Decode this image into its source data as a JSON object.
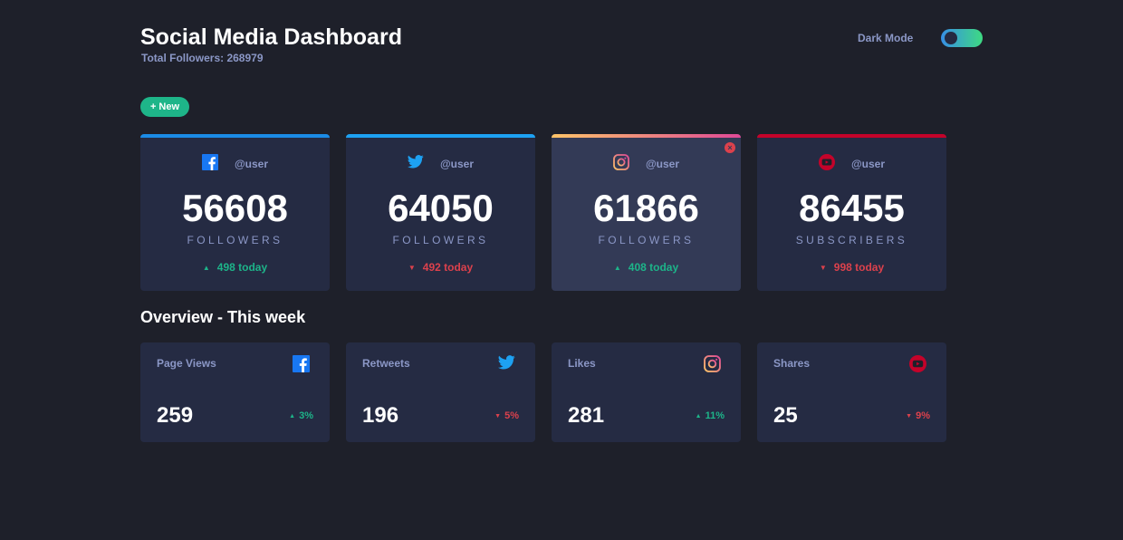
{
  "header": {
    "title": "Social Media Dashboard",
    "total_followers": "Total Followers: 268979",
    "dark_mode_label": "Dark Mode",
    "dark_mode_on": true
  },
  "actions": {
    "new_button": "+ New"
  },
  "colors": {
    "background": "#1e202a",
    "card": "#252b43",
    "card_hover": "#333a56",
    "up": "#1db489",
    "down": "#dc414c",
    "facebook": "#1877f2",
    "twitter": "#1da1f2",
    "instagram_gradient": [
      "#fdc468",
      "#df4996"
    ],
    "youtube": "#c4032a"
  },
  "cards": [
    {
      "platform": "facebook",
      "icon": "facebook-icon",
      "handle": "@user",
      "count": "56608",
      "unit": "FOLLOWERS",
      "today": "498 today",
      "trend": "up"
    },
    {
      "platform": "twitter",
      "icon": "twitter-icon",
      "handle": "@user",
      "count": "64050",
      "unit": "FOLLOWERS",
      "today": "492 today",
      "trend": "down"
    },
    {
      "platform": "instagram",
      "icon": "instagram-icon",
      "handle": "@user",
      "count": "61866",
      "unit": "FOLLOWERS",
      "today": "408 today",
      "trend": "up"
    },
    {
      "platform": "youtube",
      "icon": "youtube-icon",
      "handle": "@user",
      "count": "86455",
      "unit": "SUBSCRIBERS",
      "today": "998 today",
      "trend": "down"
    }
  ],
  "overview": {
    "title": "Overview - This week",
    "items": [
      {
        "metric": "Page Views",
        "icon": "facebook-icon",
        "value": "259",
        "change": "3%",
        "trend": "up"
      },
      {
        "metric": "Retweets",
        "icon": "twitter-icon",
        "value": "196",
        "change": "5%",
        "trend": "down"
      },
      {
        "metric": "Likes",
        "icon": "instagram-icon",
        "value": "281",
        "change": "11%",
        "trend": "up"
      },
      {
        "metric": "Shares",
        "icon": "youtube-icon",
        "value": "25",
        "change": "9%",
        "trend": "down"
      }
    ]
  }
}
